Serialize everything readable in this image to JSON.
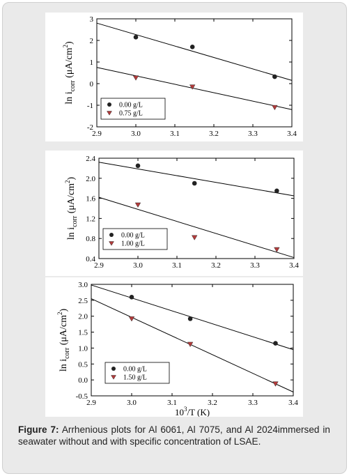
{
  "caption": {
    "label": "Figure 7:",
    "text": "Arrhenious plots for Al 6061, Al 7075, and Al 2024immersed in seawater without and with specific concentration of LSAE."
  },
  "chart_data": [
    {
      "type": "scatter",
      "ylabel_main": "ln i",
      "ylabel_sub": "corr",
      "ylabel_unit": " (μA/cm",
      "ylabel_sup": "2",
      "ylabel_close": ")",
      "xlim": [
        2.9,
        3.4
      ],
      "ylim": [
        -2,
        3
      ],
      "xticks": [
        "2.9",
        "3.0",
        "3.1",
        "3.2",
        "3.3",
        "3.4"
      ],
      "yticks": [
        "3",
        "2",
        "1",
        "0",
        "-1",
        "-2"
      ],
      "legend_position": "bottom-left",
      "series": [
        {
          "name": "0.00 g/L",
          "marker": "circle",
          "color": "#222222",
          "x": [
            3.0,
            3.145,
            3.356
          ],
          "y": [
            2.15,
            1.7,
            0.32
          ],
          "fit": [
            [
              2.9,
              2.8
            ],
            [
              3.4,
              0.15
            ]
          ]
        },
        {
          "name": "0.75 g/L",
          "marker": "triangle-down",
          "color": "#b23a3a",
          "x": [
            3.0,
            3.145,
            3.356
          ],
          "y": [
            0.27,
            -0.15,
            -1.1
          ],
          "fit": [
            [
              2.9,
              0.75
            ],
            [
              3.4,
              -1.2
            ]
          ]
        }
      ]
    },
    {
      "type": "scatter",
      "ylabel_main": "ln i",
      "ylabel_sub": "corr",
      "ylabel_unit": " (μA/cm",
      "ylabel_sup": "2",
      "ylabel_close": ")",
      "xlim": [
        2.9,
        3.4
      ],
      "ylim": [
        0.4,
        2.4
      ],
      "xticks": [
        "2.9",
        "3.0",
        "3.1",
        "3.2",
        "3.3",
        "3.4"
      ],
      "yticks": [
        "2.4",
        "2.0",
        "1.6",
        "1.2",
        "0.8",
        "0.4"
      ],
      "legend_position": "bottom-left",
      "series": [
        {
          "name": "0.00 g/L",
          "marker": "circle",
          "color": "#222222",
          "x": [
            3.0,
            3.145,
            3.356
          ],
          "y": [
            2.25,
            1.9,
            1.75
          ],
          "fit": [
            [
              2.9,
              2.32
            ],
            [
              3.4,
              1.65
            ]
          ]
        },
        {
          "name": "1.00 g/L",
          "marker": "triangle-down",
          "color": "#b23a3a",
          "x": [
            3.0,
            3.145,
            3.356
          ],
          "y": [
            1.47,
            0.82,
            0.58
          ],
          "fit": [
            [
              2.9,
              1.62
            ],
            [
              3.4,
              0.42
            ]
          ]
        }
      ]
    },
    {
      "type": "scatter",
      "xlabel_pre": "10",
      "xlabel_sup": "3",
      "xlabel_post": "/T (K)",
      "ylabel_main": "ln i",
      "ylabel_sub": "corr",
      "ylabel_unit": " (μA/cm",
      "ylabel_sup": "2",
      "ylabel_close": ")",
      "xlim": [
        2.9,
        3.4
      ],
      "ylim": [
        -0.5,
        3.0
      ],
      "xticks": [
        "2.9",
        "3.0",
        "3.1",
        "3.2",
        "3.3",
        "3.4"
      ],
      "yticks": [
        "3.0",
        "2.5",
        "2.0",
        "1.5",
        "1.0",
        "0.5",
        "0.0",
        "-0.5"
      ],
      "legend_position": "bottom-left",
      "series": [
        {
          "name": "0.00 g/L",
          "marker": "circle",
          "color": "#222222",
          "x": [
            3.0,
            3.145,
            3.356
          ],
          "y": [
            2.6,
            1.92,
            1.15
          ],
          "fit": [
            [
              2.9,
              2.98
            ],
            [
              3.4,
              0.95
            ]
          ]
        },
        {
          "name": "1.50 g/L",
          "marker": "triangle-down",
          "color": "#b23a3a",
          "x": [
            3.0,
            3.145,
            3.356
          ],
          "y": [
            1.92,
            1.12,
            -0.12
          ],
          "fit": [
            [
              2.9,
              2.55
            ],
            [
              3.4,
              -0.38
            ]
          ]
        }
      ]
    }
  ]
}
